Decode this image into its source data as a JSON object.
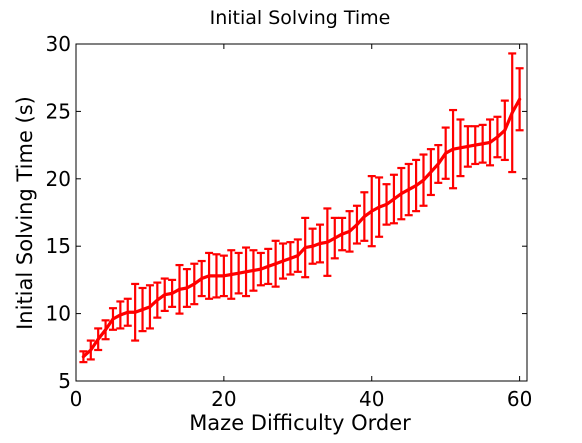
{
  "chart_data": {
    "type": "line",
    "title": "Initial Solving Time",
    "xlabel": "Maze Difficulty Order",
    "ylabel": "Initial Solving Time (s)",
    "xlim": [
      0,
      61
    ],
    "ylim": [
      5,
      30
    ],
    "xticks": [
      0,
      20,
      40,
      60
    ],
    "yticks": [
      5,
      10,
      15,
      20,
      25,
      30
    ],
    "xtick_labels": [
      "0",
      "20",
      "40",
      "60"
    ],
    "ytick_labels": [
      "5",
      "10",
      "15",
      "20",
      "25",
      "30"
    ],
    "grid": false,
    "series": [
      {
        "color": "#ff0000",
        "x": [
          1,
          2,
          3,
          4,
          5,
          6,
          7,
          8,
          9,
          10,
          11,
          12,
          13,
          14,
          15,
          16,
          17,
          18,
          19,
          20,
          21,
          22,
          23,
          24,
          25,
          26,
          27,
          28,
          29,
          30,
          31,
          32,
          33,
          34,
          35,
          36,
          37,
          38,
          39,
          40,
          41,
          42,
          43,
          44,
          45,
          46,
          47,
          48,
          49,
          50,
          51,
          52,
          53,
          54,
          55,
          56,
          57,
          58,
          59,
          60
        ],
        "y": [
          6.8,
          7.3,
          8.1,
          8.8,
          9.6,
          9.9,
          10.1,
          10.1,
          10.3,
          10.5,
          11.0,
          11.4,
          11.5,
          11.8,
          11.9,
          12.2,
          12.6,
          12.8,
          12.8,
          12.8,
          12.9,
          13.0,
          13.1,
          13.2,
          13.3,
          13.5,
          13.7,
          13.9,
          14.1,
          14.3,
          14.9,
          15.0,
          15.2,
          15.3,
          15.6,
          15.9,
          16.1,
          16.6,
          17.2,
          17.6,
          17.9,
          18.1,
          18.5,
          18.9,
          19.2,
          19.5,
          19.9,
          20.5,
          21.1,
          21.9,
          22.2,
          22.3,
          22.4,
          22.5,
          22.6,
          22.7,
          23.1,
          23.6,
          24.9,
          25.9
        ],
        "err": [
          0.4,
          0.7,
          0.8,
          0.7,
          0.8,
          1.0,
          1.0,
          2.1,
          1.6,
          1.6,
          1.3,
          1.2,
          1.0,
          1.8,
          1.4,
          1.5,
          1.3,
          1.7,
          1.6,
          1.5,
          1.8,
          1.5,
          1.8,
          1.5,
          1.2,
          1.3,
          1.7,
          1.3,
          1.2,
          1.2,
          2.2,
          1.3,
          1.4,
          2.5,
          1.5,
          1.2,
          1.5,
          1.4,
          1.8,
          2.6,
          2.2,
          1.5,
          1.8,
          1.9,
          1.9,
          1.9,
          1.9,
          1.7,
          1.4,
          1.9,
          2.9,
          2.1,
          1.5,
          1.4,
          1.4,
          1.7,
          1.5,
          2.2,
          4.4,
          2.3
        ]
      }
    ]
  }
}
